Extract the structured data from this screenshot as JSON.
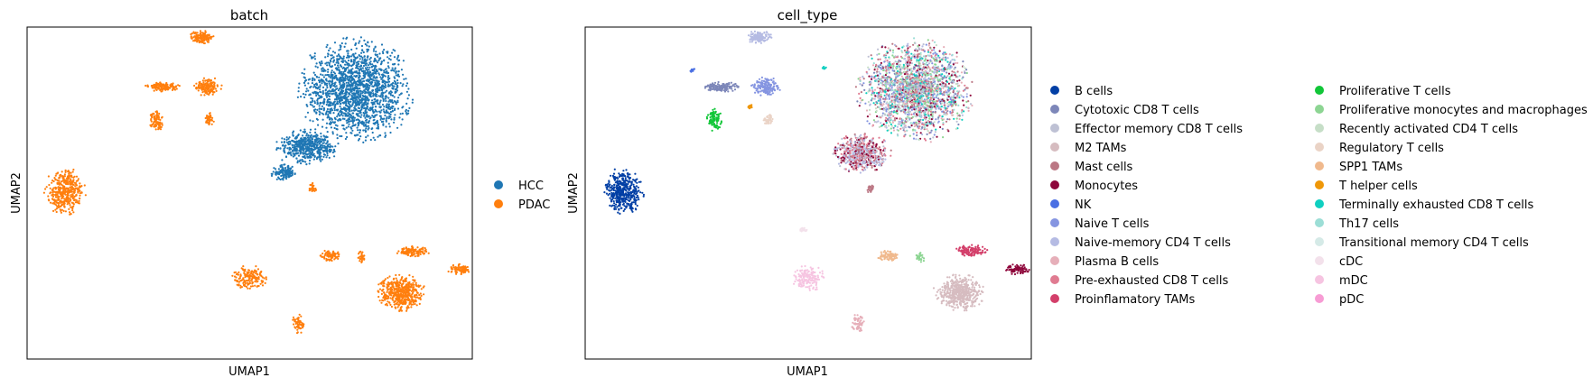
{
  "chart_data": [
    {
      "type": "scatter",
      "title": "batch",
      "xlabel": "UMAP1",
      "ylabel": "UMAP2",
      "xticks": "none",
      "yticks": "none",
      "grid": false,
      "legend_position": "right",
      "legend": [
        {
          "label": "HCC",
          "color": "#1f77b4"
        },
        {
          "label": "PDAC",
          "color": "#ff7f0e"
        }
      ],
      "clusters": [
        {
          "x": 6.9,
          "y": 7.6,
          "sx": 1.0,
          "sy": 1.2,
          "n": 1800,
          "color_index": 0
        },
        {
          "x": 5.8,
          "y": 5.9,
          "sx": 0.55,
          "sy": 0.4,
          "n": 500,
          "color_index": 0
        },
        {
          "x": 5.3,
          "y": 5.1,
          "sx": 0.25,
          "sy": 0.2,
          "n": 120,
          "color_index": 0
        },
        {
          "x": 0.35,
          "y": 4.55,
          "sx": 0.35,
          "sy": 0.55,
          "n": 420,
          "color_index": 1
        },
        {
          "x": 3.4,
          "y": 9.2,
          "sx": 0.22,
          "sy": 0.15,
          "n": 140,
          "color_index": 1
        },
        {
          "x": 2.55,
          "y": 7.7,
          "sx": 0.3,
          "sy": 0.12,
          "n": 140,
          "color_index": 1
        },
        {
          "x": 3.55,
          "y": 7.7,
          "sx": 0.25,
          "sy": 0.22,
          "n": 160,
          "color_index": 1
        },
        {
          "x": 2.4,
          "y": 6.7,
          "sx": 0.14,
          "sy": 0.25,
          "n": 90,
          "color_index": 1
        },
        {
          "x": 3.6,
          "y": 6.7,
          "sx": 0.08,
          "sy": 0.16,
          "n": 40,
          "color_index": 1
        },
        {
          "x": 4.5,
          "y": 1.95,
          "sx": 0.3,
          "sy": 0.3,
          "n": 160,
          "color_index": 1
        },
        {
          "x": 6.3,
          "y": 2.6,
          "sx": 0.2,
          "sy": 0.14,
          "n": 80,
          "color_index": 1
        },
        {
          "x": 7.0,
          "y": 2.55,
          "sx": 0.08,
          "sy": 0.14,
          "n": 30,
          "color_index": 1
        },
        {
          "x": 8.15,
          "y": 2.75,
          "sx": 0.3,
          "sy": 0.14,
          "n": 130,
          "color_index": 1
        },
        {
          "x": 9.2,
          "y": 2.2,
          "sx": 0.22,
          "sy": 0.12,
          "n": 80,
          "color_index": 1
        },
        {
          "x": 7.9,
          "y": 1.5,
          "sx": 0.42,
          "sy": 0.42,
          "n": 500,
          "color_index": 1
        },
        {
          "x": 5.6,
          "y": 0.55,
          "sx": 0.12,
          "sy": 0.22,
          "n": 60,
          "color_index": 1
        },
        {
          "x": 5.9,
          "y": 4.65,
          "sx": 0.08,
          "sy": 0.12,
          "n": 25,
          "color_index": 1
        }
      ],
      "xlim": [
        -0.5,
        9.5
      ],
      "ylim": [
        -0.5,
        9.5
      ]
    },
    {
      "type": "scatter",
      "title": "cell_type",
      "xlabel": "UMAP1",
      "ylabel": "UMAP2",
      "xticks": "none",
      "yticks": "none",
      "grid": false,
      "legend_position": "right",
      "legend_columns": 2,
      "legend": [
        {
          "label": "B cells",
          "color": "#023fa5"
        },
        {
          "label": "Cytotoxic CD8 T cells",
          "color": "#7d87b9"
        },
        {
          "label": "Effector memory CD8 T cells",
          "color": "#bec1d4"
        },
        {
          "label": "M2 TAMs",
          "color": "#d6bcc0"
        },
        {
          "label": "Mast cells",
          "color": "#bb7784"
        },
        {
          "label": "Monocytes",
          "color": "#8e063b"
        },
        {
          "label": "NK",
          "color": "#4a6fe3"
        },
        {
          "label": "Naive T cells",
          "color": "#8595e1"
        },
        {
          "label": "Naive-memory CD4 T cells",
          "color": "#b5bbe3"
        },
        {
          "label": "Plasma B cells",
          "color": "#e6afb9"
        },
        {
          "label": "Pre-exhausted CD8 T cells",
          "color": "#e07b91"
        },
        {
          "label": "Proinflamatory TAMs",
          "color": "#d33f6a"
        },
        {
          "label": "Proliferative T cells",
          "color": "#11c638"
        },
        {
          "label": "Proliferative monocytes and macrophages",
          "color": "#8dd593"
        },
        {
          "label": "Recently activated CD4 T cells",
          "color": "#c6dec7"
        },
        {
          "label": "Regulatory T cells",
          "color": "#ead3c6"
        },
        {
          "label": "SPP1 TAMs",
          "color": "#f0b98d"
        },
        {
          "label": "T helper cells",
          "color": "#ef9708"
        },
        {
          "label": "Terminally exhausted CD8 T cells",
          "color": "#0fcfc0"
        },
        {
          "label": "Th17 cells",
          "color": "#9cded6"
        },
        {
          "label": "Transitional memory CD4 T cells",
          "color": "#d5eae7"
        },
        {
          "label": "cDC",
          "color": "#f3e1eb"
        },
        {
          "label": "mDC",
          "color": "#f6c4e1"
        },
        {
          "label": "pDC",
          "color": "#f79cd4"
        }
      ],
      "clusters": [
        {
          "x": 6.9,
          "y": 7.6,
          "sx": 1.0,
          "sy": 1.2,
          "n": 2200,
          "mixed": [
            1,
            2,
            4,
            5,
            7,
            8,
            9,
            10,
            13,
            14,
            18,
            19
          ],
          "color_index": 8
        },
        {
          "x": 5.7,
          "y": 5.7,
          "sx": 0.5,
          "sy": 0.45,
          "n": 600,
          "mixed": [
            5,
            10,
            4,
            2,
            8
          ],
          "color_index": 5
        },
        {
          "x": 0.35,
          "y": 4.55,
          "sx": 0.35,
          "sy": 0.55,
          "n": 420,
          "color_index": 0
        },
        {
          "x": 3.4,
          "y": 9.2,
          "sx": 0.22,
          "sy": 0.15,
          "n": 140,
          "color_index": 8
        },
        {
          "x": 2.55,
          "y": 7.7,
          "sx": 0.3,
          "sy": 0.12,
          "n": 140,
          "color_index": 1
        },
        {
          "x": 3.55,
          "y": 7.7,
          "sx": 0.25,
          "sy": 0.22,
          "n": 160,
          "color_index": 7
        },
        {
          "x": 2.4,
          "y": 6.7,
          "sx": 0.14,
          "sy": 0.25,
          "n": 90,
          "color_index": 12
        },
        {
          "x": 3.6,
          "y": 6.7,
          "sx": 0.08,
          "sy": 0.16,
          "n": 40,
          "color_index": 15
        },
        {
          "x": 3.2,
          "y": 7.1,
          "sx": 0.06,
          "sy": 0.05,
          "n": 18,
          "color_index": 17
        },
        {
          "x": 1.9,
          "y": 8.2,
          "sx": 0.06,
          "sy": 0.04,
          "n": 14,
          "color_index": 6
        },
        {
          "x": 4.85,
          "y": 8.25,
          "sx": 0.05,
          "sy": 0.04,
          "n": 12,
          "color_index": 18
        },
        {
          "x": 4.5,
          "y": 1.95,
          "sx": 0.3,
          "sy": 0.3,
          "n": 160,
          "color_index": 22
        },
        {
          "x": 6.3,
          "y": 2.6,
          "sx": 0.2,
          "sy": 0.14,
          "n": 80,
          "color_index": 16
        },
        {
          "x": 7.0,
          "y": 2.55,
          "sx": 0.08,
          "sy": 0.14,
          "n": 30,
          "color_index": 13
        },
        {
          "x": 8.15,
          "y": 2.75,
          "sx": 0.3,
          "sy": 0.14,
          "n": 130,
          "color_index": 11
        },
        {
          "x": 9.2,
          "y": 2.2,
          "sx": 0.22,
          "sy": 0.12,
          "n": 80,
          "color_index": 5
        },
        {
          "x": 7.9,
          "y": 1.5,
          "sx": 0.42,
          "sy": 0.42,
          "n": 500,
          "color_index": 3
        },
        {
          "x": 5.6,
          "y": 0.55,
          "sx": 0.12,
          "sy": 0.22,
          "n": 60,
          "color_index": 9
        },
        {
          "x": 4.4,
          "y": 3.4,
          "sx": 0.08,
          "sy": 0.06,
          "n": 18,
          "color_index": 21
        },
        {
          "x": 5.9,
          "y": 4.65,
          "sx": 0.08,
          "sy": 0.12,
          "n": 25,
          "color_index": 4
        }
      ],
      "xlim": [
        -0.5,
        9.5
      ],
      "ylim": [
        -0.5,
        9.5
      ]
    }
  ]
}
